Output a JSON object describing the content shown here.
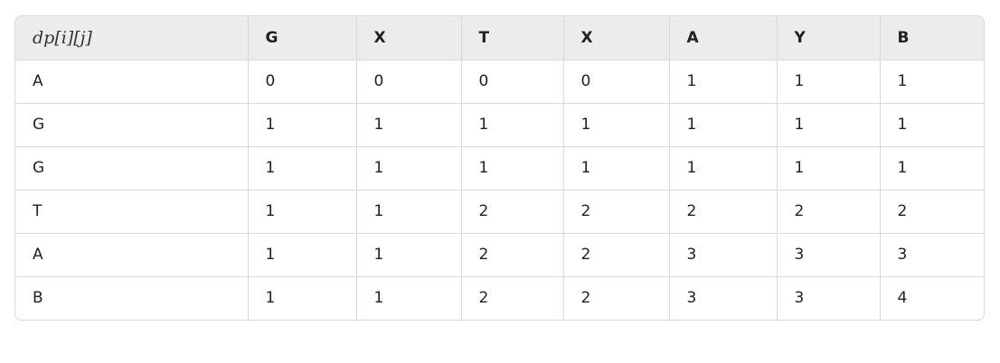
{
  "table": {
    "header": [
      "dp[i][j]",
      "G",
      "X",
      "T",
      "X",
      "A",
      "Y",
      "B"
    ],
    "rows": [
      [
        "A",
        0,
        0,
        0,
        0,
        1,
        1,
        1
      ],
      [
        "G",
        1,
        1,
        1,
        1,
        1,
        1,
        1
      ],
      [
        "G",
        1,
        1,
        1,
        1,
        1,
        1,
        1
      ],
      [
        "T",
        1,
        1,
        2,
        2,
        2,
        2,
        2
      ],
      [
        "A",
        1,
        1,
        2,
        2,
        3,
        3,
        3
      ],
      [
        "B",
        1,
        1,
        2,
        2,
        3,
        3,
        4
      ]
    ]
  }
}
